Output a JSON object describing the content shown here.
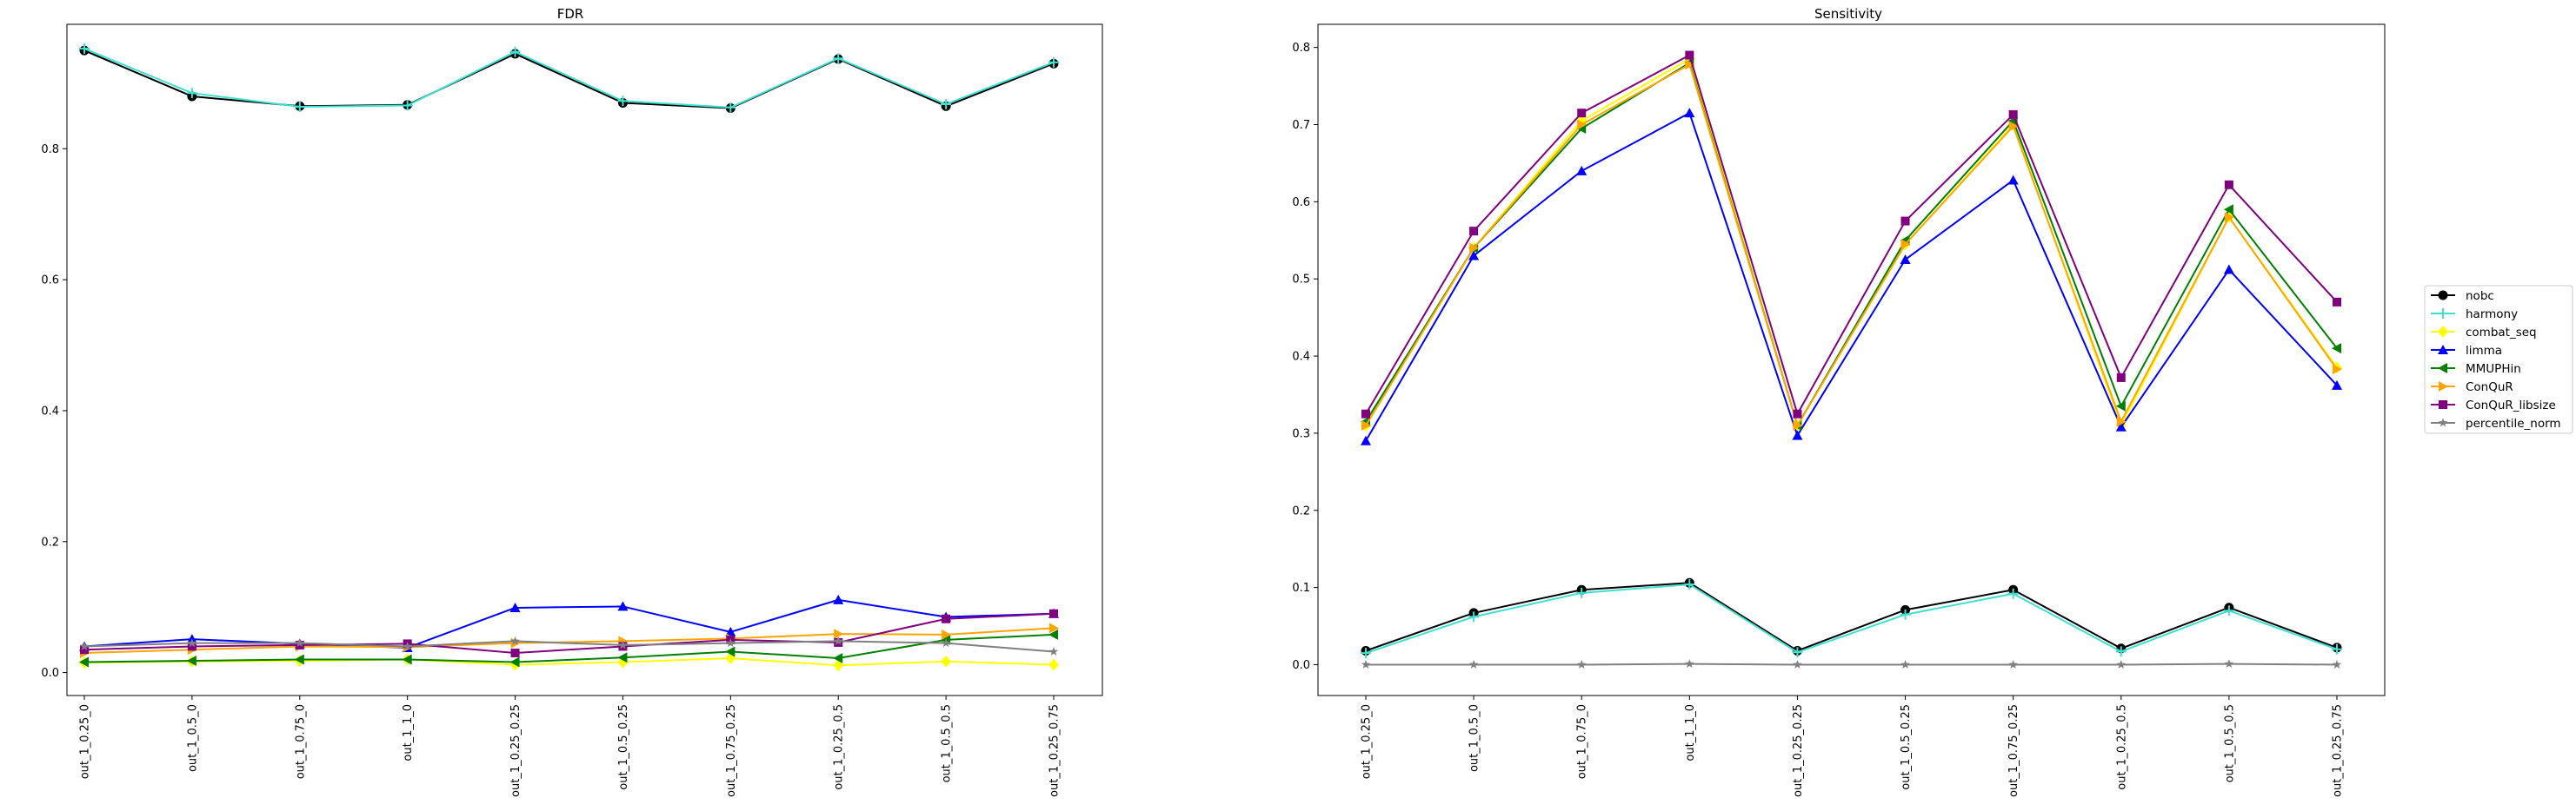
{
  "chart_data": [
    {
      "type": "line",
      "title": "FDR",
      "xlabel": "",
      "ylabel": "",
      "categories": [
        "out_1_0.25_0",
        "out_1_0.5_0",
        "out_1_0.75_0",
        "out_1_1_0",
        "out_1_0.25_0.25",
        "out_1_0.5_0.25",
        "out_1_0.75_0.25",
        "out_1_0.25_0.5",
        "out_1_0.5_0.5",
        "out_1_0.25_0.75"
      ],
      "ylim": [
        -0.035,
        0.99
      ],
      "yticks": [
        0.0,
        0.2,
        0.4,
        0.6,
        0.8
      ],
      "ytick_labels": [
        "0.0",
        "0.2",
        "0.4",
        "0.6",
        "0.8"
      ],
      "grid": false,
      "series": [
        {
          "name": "nobc",
          "color": "#000000",
          "marker": "circle",
          "values": [
            0.95,
            0.88,
            0.865,
            0.867,
            0.945,
            0.87,
            0.862,
            0.937,
            0.865,
            0.93
          ]
        },
        {
          "name": "harmony",
          "color": "#40E0D0",
          "marker": "plus",
          "values": [
            0.953,
            0.885,
            0.864,
            0.866,
            0.948,
            0.873,
            0.863,
            0.938,
            0.868,
            0.932
          ]
        },
        {
          "name": "combat_seq",
          "color": "#FFFF00",
          "marker": "diamond",
          "values": [
            0.015,
            0.017,
            0.018,
            0.02,
            0.012,
            0.016,
            0.022,
            0.011,
            0.017,
            0.012
          ]
        },
        {
          "name": "limma",
          "color": "#0000FF",
          "marker": "triangle-up",
          "values": [
            0.04,
            0.051,
            0.044,
            0.038,
            0.099,
            0.101,
            0.062,
            0.111,
            0.085,
            0.09
          ]
        },
        {
          "name": "MMUPHin",
          "color": "#008000",
          "marker": "triangle-left",
          "values": [
            0.016,
            0.018,
            0.02,
            0.02,
            0.016,
            0.023,
            0.032,
            0.022,
            0.05,
            0.058
          ]
        },
        {
          "name": "ConQuR",
          "color": "#FFA500",
          "marker": "triangle-right",
          "values": [
            0.03,
            0.035,
            0.04,
            0.039,
            0.045,
            0.048,
            0.052,
            0.059,
            0.058,
            0.068
          ]
        },
        {
          "name": "ConQuR_libsize",
          "color": "#800080",
          "marker": "square",
          "values": [
            0.035,
            0.04,
            0.042,
            0.044,
            0.03,
            0.04,
            0.05,
            0.046,
            0.082,
            0.09
          ]
        },
        {
          "name": "percentile_norm",
          "color": "#808080",
          "marker": "star",
          "values": [
            0.04,
            0.045,
            0.045,
            0.04,
            0.048,
            0.042,
            0.045,
            0.048,
            0.045,
            0.032
          ]
        }
      ]
    },
    {
      "type": "line",
      "title": "Sensitivity",
      "xlabel": "",
      "ylabel": "",
      "categories": [
        "out_1_0.25_0",
        "out_1_0.5_0",
        "out_1_0.75_0",
        "out_1_1_0",
        "out_1_0.25_0.25",
        "out_1_0.5_0.25",
        "out_1_0.75_0.25",
        "out_1_0.25_0.5",
        "out_1_0.5_0.5",
        "out_1_0.25_0.75"
      ],
      "ylim": [
        -0.04,
        0.83
      ],
      "yticks": [
        0.0,
        0.1,
        0.2,
        0.3,
        0.4,
        0.5,
        0.6,
        0.7,
        0.8
      ],
      "ytick_labels": [
        "0.0",
        "0.1",
        "0.2",
        "0.3",
        "0.4",
        "0.5",
        "0.6",
        "0.7",
        "0.8"
      ],
      "grid": false,
      "series": [
        {
          "name": "nobc",
          "color": "#000000",
          "marker": "circle",
          "values": [
            0.018,
            0.067,
            0.097,
            0.106,
            0.018,
            0.071,
            0.097,
            0.021,
            0.074,
            0.022
          ]
        },
        {
          "name": "harmony",
          "color": "#40E0D0",
          "marker": "plus",
          "values": [
            0.015,
            0.062,
            0.093,
            0.104,
            0.016,
            0.065,
            0.092,
            0.017,
            0.07,
            0.02
          ]
        },
        {
          "name": "combat_seq",
          "color": "#FFFF00",
          "marker": "diamond",
          "values": [
            0.31,
            0.54,
            0.705,
            0.785,
            0.31,
            0.545,
            0.7,
            0.31,
            0.58,
            0.385
          ]
        },
        {
          "name": "limma",
          "color": "#0000FF",
          "marker": "triangle-up",
          "values": [
            0.29,
            0.53,
            0.64,
            0.715,
            0.297,
            0.525,
            0.628,
            0.308,
            0.512,
            0.362
          ]
        },
        {
          "name": "MMUPHin",
          "color": "#008000",
          "marker": "triangle-left",
          "values": [
            0.315,
            0.54,
            0.695,
            0.78,
            0.31,
            0.55,
            0.705,
            0.335,
            0.59,
            0.41
          ]
        },
        {
          "name": "ConQuR",
          "color": "#FFA500",
          "marker": "triangle-right",
          "values": [
            0.31,
            0.54,
            0.7,
            0.778,
            0.31,
            0.545,
            0.698,
            0.315,
            0.58,
            0.383
          ]
        },
        {
          "name": "ConQuR_libsize",
          "color": "#800080",
          "marker": "square",
          "values": [
            0.325,
            0.562,
            0.715,
            0.79,
            0.325,
            0.575,
            0.713,
            0.372,
            0.622,
            0.47
          ]
        },
        {
          "name": "percentile_norm",
          "color": "#808080",
          "marker": "star",
          "values": [
            0.0,
            0.0,
            0.0,
            0.001,
            0.0,
            0.0,
            0.0,
            0.0,
            0.001,
            0.0
          ]
        }
      ]
    }
  ],
  "legend": {
    "placement": "right",
    "items": [
      "nobc",
      "harmony",
      "combat_seq",
      "limma",
      "MMUPHin",
      "ConQuR",
      "ConQuR_libsize",
      "percentile_norm"
    ]
  }
}
